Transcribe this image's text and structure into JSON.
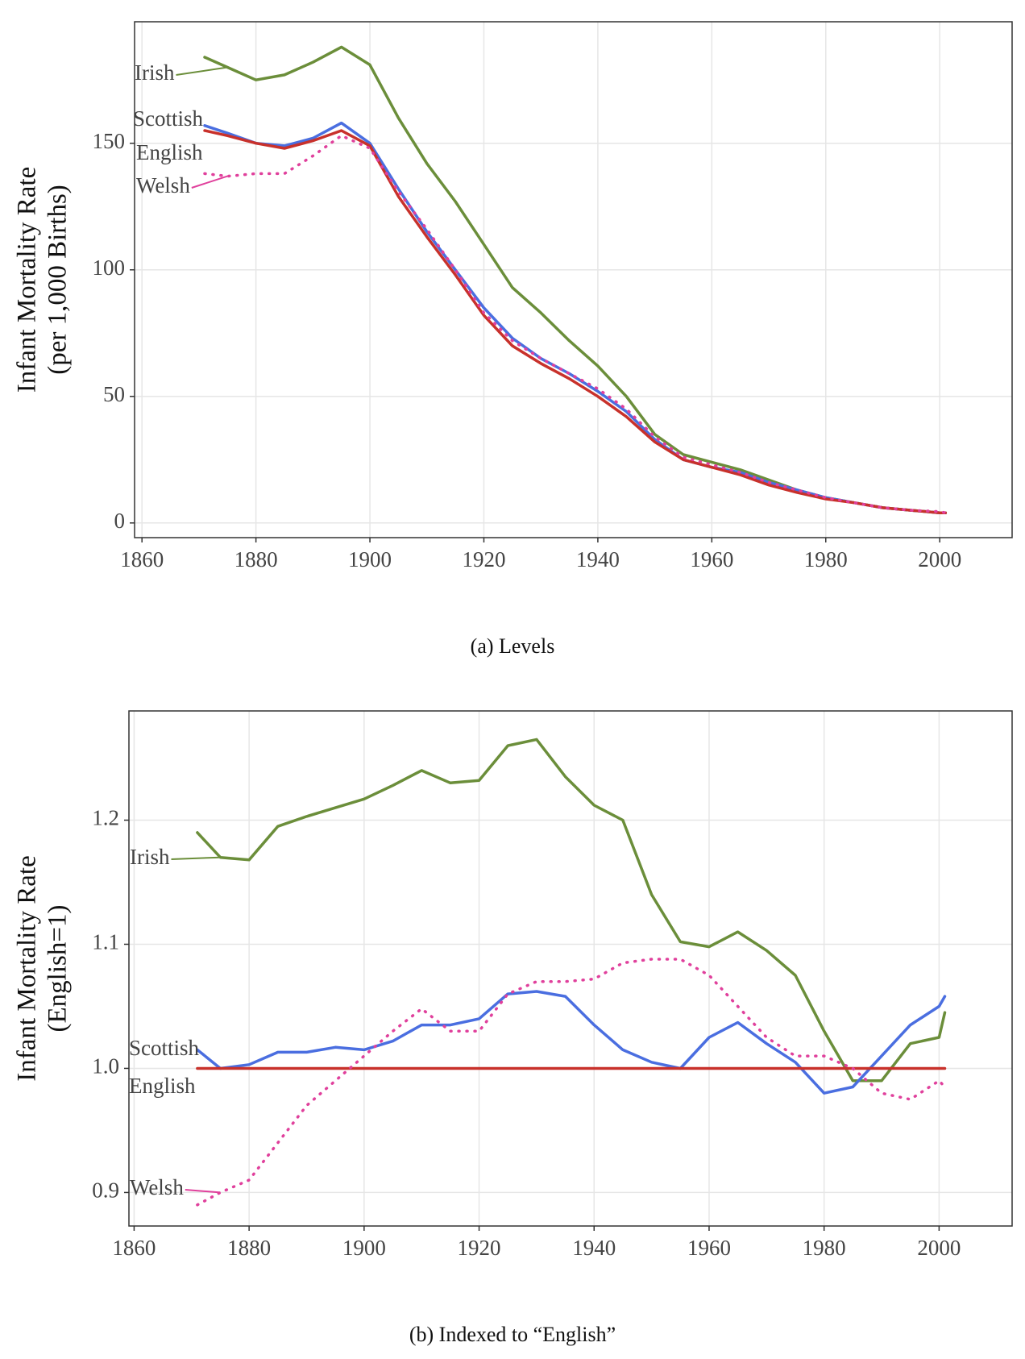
{
  "chart_data": [
    {
      "type": "line",
      "caption": "(a) Levels",
      "ylabel": [
        "Infant Mortality Rate",
        "(per 1,000 Births)"
      ],
      "x": [
        1871,
        1875,
        1880,
        1885,
        1890,
        1895,
        1900,
        1905,
        1910,
        1915,
        1920,
        1925,
        1930,
        1935,
        1940,
        1945,
        1950,
        1955,
        1960,
        1965,
        1970,
        1975,
        1980,
        1985,
        1990,
        1995,
        2000,
        2001
      ],
      "xlim": [
        1858.7,
        2012.7
      ],
      "xticks": [
        1860,
        1880,
        1900,
        1920,
        1940,
        1960,
        1980,
        2000
      ],
      "ylim": [
        -5.8,
        198
      ],
      "yticks": [
        0,
        50,
        100,
        150
      ],
      "grid": true,
      "series": [
        {
          "name": "Irish",
          "color": "#6b8e3a",
          "values": [
            184,
            180,
            175,
            177,
            182,
            188,
            181,
            160,
            142,
            127,
            110,
            93,
            83,
            72,
            62,
            50,
            35,
            27,
            24,
            21,
            17,
            13,
            10,
            8,
            6,
            5,
            4,
            4
          ]
        },
        {
          "name": "Scottish",
          "color": "#4a6ee0",
          "values": [
            157,
            154,
            150,
            149,
            152,
            158,
            150,
            132,
            115,
            100,
            85,
            73,
            65,
            59,
            52,
            44,
            33,
            25,
            22,
            20,
            16,
            13,
            10,
            8,
            6,
            5,
            4,
            4
          ]
        },
        {
          "name": "English",
          "color": "#c8312b",
          "values": [
            155,
            153,
            150,
            148,
            151,
            155,
            149,
            129,
            113,
            98,
            82,
            70,
            63,
            57,
            50,
            42,
            32,
            25,
            22,
            19,
            15,
            12,
            9.5,
            8,
            6,
            5,
            4,
            4
          ]
        },
        {
          "name": "Welsh",
          "color": "#e0409c",
          "dotted": true,
          "values": [
            138,
            137,
            138,
            138,
            145,
            153,
            148,
            131,
            116,
            100,
            83,
            72,
            65,
            59,
            53,
            45,
            34,
            26,
            23,
            20,
            16,
            13,
            10,
            8,
            6,
            5,
            4.5,
            4
          ]
        }
      ]
    },
    {
      "type": "line",
      "caption": "(b) Indexed to “English”",
      "ylabel": [
        "Infant Mortality Rate",
        "(English=1)"
      ],
      "x": [
        1871,
        1875,
        1880,
        1885,
        1890,
        1895,
        1900,
        1905,
        1910,
        1915,
        1920,
        1925,
        1930,
        1935,
        1940,
        1945,
        1950,
        1955,
        1960,
        1965,
        1970,
        1975,
        1980,
        1985,
        1990,
        1995,
        2000,
        2001
      ],
      "xlim": [
        1859.1,
        2012.7
      ],
      "xticks": [
        1860,
        1880,
        1900,
        1920,
        1940,
        1960,
        1980,
        2000
      ],
      "ylim": [
        0.873,
        1.288
      ],
      "yticks": [
        0.9,
        {
          "value": 1,
          "label": "1.0"
        },
        1.1,
        1.2
      ],
      "grid": true,
      "series": [
        {
          "name": "Irish",
          "color": "#6b8e3a",
          "values": [
            1.19,
            1.17,
            1.168,
            1.195,
            1.203,
            1.21,
            1.217,
            1.228,
            1.24,
            1.23,
            1.232,
            1.26,
            1.265,
            1.235,
            1.212,
            1.2,
            1.14,
            1.102,
            1.098,
            1.11,
            1.095,
            1.075,
            1.03,
            0.99,
            0.99,
            1.02,
            1.025,
            1.045
          ]
        },
        {
          "name": "Scottish",
          "color": "#4a6ee0",
          "values": [
            1.015,
            1.0,
            1.003,
            1.013,
            1.013,
            1.017,
            1.015,
            1.022,
            1.035,
            1.035,
            1.04,
            1.06,
            1.062,
            1.058,
            1.035,
            1.015,
            1.005,
            1.0,
            1.025,
            1.037,
            1.02,
            1.005,
            0.98,
            0.985,
            1.01,
            1.035,
            1.05,
            1.058
          ]
        },
        {
          "name": "English",
          "color": "#c8312b",
          "values": [
            1,
            1,
            1,
            1,
            1,
            1,
            1,
            1,
            1,
            1,
            1,
            1,
            1,
            1,
            1,
            1,
            1,
            1,
            1,
            1,
            1,
            1,
            1,
            1,
            1,
            1,
            1,
            1
          ]
        },
        {
          "name": "Welsh",
          "color": "#e0409c",
          "dotted": true,
          "values": [
            0.89,
            0.9,
            0.91,
            0.94,
            0.97,
            0.99,
            1.01,
            1.03,
            1.048,
            1.03,
            1.03,
            1.06,
            1.07,
            1.07,
            1.072,
            1.085,
            1.088,
            1.088,
            1.075,
            1.05,
            1.025,
            1.01,
            1.01,
            1.0,
            0.98,
            0.975,
            0.99,
            0.985
          ]
        }
      ]
    }
  ]
}
